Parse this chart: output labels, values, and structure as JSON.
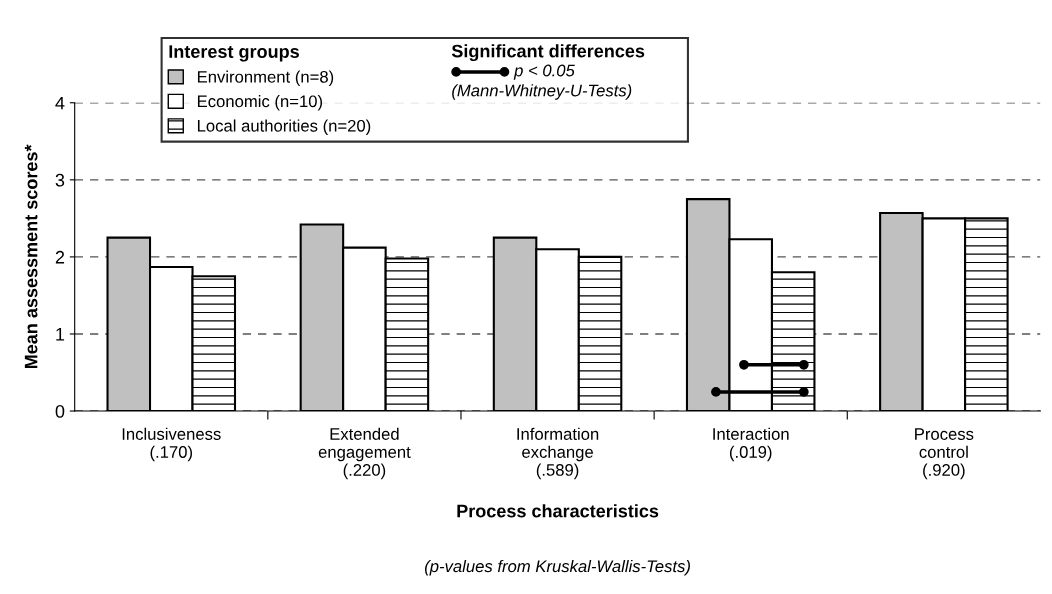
{
  "chart_data": {
    "type": "bar",
    "ylabel": "Mean assessment scores*",
    "xlabel": "Process characteristics",
    "legend_title": "Interest groups",
    "categories": [
      "Inclusiveness\n(.170)",
      "Extended\nengagement\n(.220)",
      "Information\nexchange\n(.589)",
      "Interaction\n(.019)",
      "Process\ncontrol\n(.920)"
    ],
    "series": [
      {
        "name": "Environment (n=8)",
        "color": "#c0c0c0",
        "values": [
          2.25,
          2.42,
          2.25,
          2.75,
          2.57
        ]
      },
      {
        "name": "Economic (n=10)",
        "color": "#ffffff",
        "values": [
          1.87,
          2.12,
          2.1,
          2.23,
          2.5
        ]
      },
      {
        "name": "Local authorities (n=20)",
        "color": "#000000",
        "values": [
          1.75,
          1.98,
          2.0,
          1.8,
          2.5
        ]
      }
    ],
    "ylim": [
      0,
      4
    ],
    "yticks": [
      0,
      1,
      2,
      3,
      4
    ],
    "grid": "y",
    "legend": "top left",
    "annotations": [
      "Significant differences",
      "p < 0.05",
      "(Mann-Whitney-U-Tests)",
      "(p-values from Kruskal-Wallis-Tests)"
    ]
  }
}
